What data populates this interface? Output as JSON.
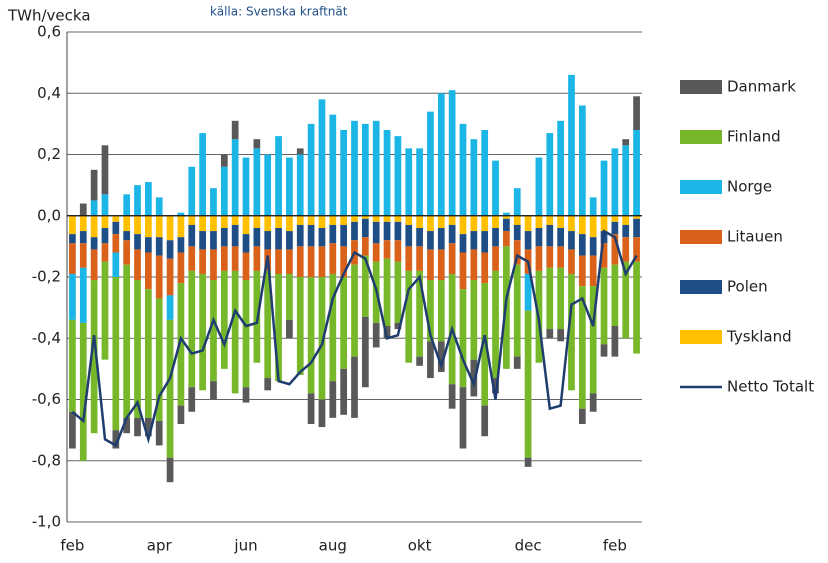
{
  "chart_data": {
    "type": "bar",
    "stacked": true,
    "subtitle": "källa: Svenska kraftnät",
    "y_axis_label": "TWh/vecka",
    "categories": [
      "feb",
      null,
      null,
      null,
      null,
      null,
      null,
      null,
      "apr",
      null,
      null,
      null,
      null,
      null,
      null,
      null,
      "jun",
      null,
      null,
      null,
      null,
      null,
      null,
      null,
      "aug",
      null,
      null,
      null,
      null,
      null,
      null,
      null,
      "okt",
      null,
      null,
      null,
      null,
      null,
      null,
      null,
      null,
      null,
      "dec",
      null,
      null,
      null,
      null,
      null,
      null,
      null,
      "feb",
      null,
      null
    ],
    "ylim": [
      -1.0,
      0.6
    ],
    "yticks": [
      {
        "value": -1.0,
        "label": "-1,0"
      },
      {
        "value": -0.8,
        "label": "-0,8"
      },
      {
        "value": -0.6,
        "label": "-0,6"
      },
      {
        "value": -0.4,
        "label": "-0,4"
      },
      {
        "value": -0.2,
        "label": "-0,2"
      },
      {
        "value": 0.0,
        "label": "0,0"
      },
      {
        "value": 0.2,
        "label": "0,2"
      },
      {
        "value": 0.4,
        "label": "0,4"
      },
      {
        "value": 0.6,
        "label": "0,6"
      }
    ],
    "grid": true,
    "legend": "right",
    "series": [
      {
        "name": "Danmark",
        "color": "#595959",
        "values": [
          -0.12,
          0.04,
          0.1,
          0.16,
          -0.06,
          -0.05,
          -0.06,
          -0.06,
          -0.08,
          -0.08,
          -0.06,
          -0.08,
          0.0,
          -0.06,
          0.04,
          0.06,
          -0.05,
          0.03,
          -0.04,
          0.0,
          -0.06,
          0.02,
          -0.1,
          -0.09,
          -0.12,
          -0.15,
          -0.2,
          -0.23,
          -0.08,
          -0.04,
          -0.02,
          0.0,
          -0.03,
          -0.12,
          -0.1,
          -0.08,
          -0.2,
          -0.12,
          -0.1,
          -0.05,
          0.0,
          -0.04,
          -0.03,
          0.0,
          -0.03,
          -0.04,
          0.0,
          -0.05,
          -0.06,
          -0.04,
          -0.1,
          0.02,
          0.11
        ]
      },
      {
        "name": "Finland",
        "color": "#77b82a",
        "values": [
          -0.3,
          -0.45,
          -0.5,
          -0.32,
          -0.5,
          -0.5,
          -0.45,
          -0.42,
          -0.4,
          -0.45,
          -0.4,
          -0.38,
          -0.38,
          -0.33,
          -0.32,
          -0.4,
          -0.35,
          -0.3,
          -0.35,
          -0.35,
          -0.15,
          -0.32,
          -0.38,
          -0.4,
          -0.35,
          -0.3,
          -0.3,
          -0.2,
          -0.2,
          -0.22,
          -0.2,
          -0.3,
          -0.28,
          -0.2,
          -0.2,
          -0.36,
          -0.32,
          -0.26,
          -0.4,
          -0.35,
          -0.4,
          -0.3,
          -0.48,
          -0.3,
          -0.2,
          -0.2,
          -0.38,
          -0.4,
          -0.35,
          -0.25,
          -0.2,
          -0.25,
          -0.3
        ]
      },
      {
        "name": "Norge",
        "color": "#1bb5e6",
        "values": [
          -0.15,
          -0.18,
          0.05,
          0.07,
          -0.08,
          0.07,
          0.1,
          0.11,
          0.06,
          -0.08,
          0.01,
          0.16,
          0.27,
          0.09,
          0.16,
          0.25,
          0.19,
          0.22,
          0.2,
          0.26,
          0.19,
          0.2,
          0.3,
          0.38,
          0.33,
          0.28,
          0.31,
          0.3,
          0.31,
          0.28,
          0.26,
          0.22,
          0.22,
          0.34,
          0.4,
          0.41,
          0.3,
          0.25,
          0.28,
          0.18,
          0.01,
          0.09,
          -0.12,
          0.19,
          0.27,
          0.31,
          0.46,
          0.36,
          0.06,
          0.18,
          0.22,
          0.23,
          0.28
        ]
      },
      {
        "name": "Litauen",
        "color": "#d9611a",
        "values": [
          -0.1,
          -0.08,
          -0.1,
          -0.06,
          -0.06,
          -0.08,
          -0.1,
          -0.12,
          -0.14,
          -0.12,
          -0.1,
          -0.08,
          -0.08,
          -0.1,
          -0.08,
          -0.08,
          -0.09,
          -0.08,
          -0.07,
          -0.08,
          -0.08,
          -0.1,
          -0.1,
          -0.1,
          -0.1,
          -0.1,
          -0.08,
          -0.06,
          -0.06,
          -0.06,
          -0.07,
          -0.08,
          -0.08,
          -0.1,
          -0.1,
          -0.1,
          -0.12,
          -0.1,
          -0.1,
          -0.08,
          -0.05,
          -0.08,
          -0.08,
          -0.08,
          -0.07,
          -0.07,
          -0.08,
          -0.1,
          -0.1,
          -0.08,
          -0.1,
          -0.08,
          -0.08
        ]
      },
      {
        "name": "Polen",
        "color": "#1f4e87",
        "values": [
          -0.03,
          -0.04,
          -0.04,
          -0.05,
          -0.04,
          -0.03,
          -0.05,
          -0.05,
          -0.06,
          -0.06,
          -0.05,
          -0.07,
          -0.06,
          -0.06,
          -0.06,
          -0.07,
          -0.06,
          -0.06,
          -0.06,
          -0.07,
          -0.06,
          -0.07,
          -0.07,
          -0.06,
          -0.06,
          -0.07,
          -0.06,
          -0.06,
          -0.07,
          -0.06,
          -0.06,
          -0.07,
          -0.06,
          -0.06,
          -0.07,
          -0.06,
          -0.06,
          -0.06,
          -0.07,
          -0.06,
          -0.04,
          -0.05,
          -0.06,
          -0.06,
          -0.07,
          -0.06,
          -0.06,
          -0.07,
          -0.06,
          -0.04,
          -0.04,
          -0.04,
          -0.06
        ]
      },
      {
        "name": "Tyskland",
        "color": "#ffc000",
        "values": [
          -0.06,
          -0.05,
          -0.07,
          -0.04,
          -0.02,
          -0.05,
          -0.06,
          -0.07,
          -0.07,
          -0.08,
          -0.07,
          -0.03,
          -0.05,
          -0.05,
          -0.04,
          -0.03,
          -0.06,
          -0.04,
          -0.05,
          -0.04,
          -0.05,
          -0.03,
          -0.03,
          -0.04,
          -0.03,
          -0.03,
          -0.02,
          -0.01,
          -0.02,
          -0.02,
          -0.02,
          -0.03,
          -0.04,
          -0.05,
          -0.04,
          -0.03,
          -0.06,
          -0.05,
          -0.05,
          -0.04,
          -0.01,
          -0.03,
          -0.05,
          -0.04,
          -0.03,
          -0.04,
          -0.05,
          -0.06,
          -0.07,
          -0.05,
          -0.02,
          -0.03,
          -0.01
        ]
      },
      {
        "name": "Netto Totalt",
        "color": "#1f3d6e",
        "type": "line",
        "values": [
          -0.64,
          -0.67,
          -0.39,
          -0.73,
          -0.75,
          -0.66,
          -0.61,
          -0.73,
          -0.59,
          -0.53,
          -0.4,
          -0.45,
          -0.44,
          -0.34,
          -0.42,
          -0.31,
          -0.36,
          -0.35,
          -0.13,
          -0.54,
          -0.55,
          -0.51,
          -0.48,
          -0.42,
          -0.27,
          -0.19,
          -0.12,
          -0.14,
          -0.24,
          -0.4,
          -0.39,
          -0.24,
          -0.2,
          -0.39,
          -0.49,
          -0.37,
          -0.47,
          -0.55,
          -0.39,
          -0.6,
          -0.27,
          -0.13,
          -0.15,
          -0.34,
          -0.63,
          -0.62,
          -0.29,
          -0.27,
          -0.36,
          -0.05,
          -0.07,
          -0.19,
          -0.13
        ]
      }
    ]
  }
}
